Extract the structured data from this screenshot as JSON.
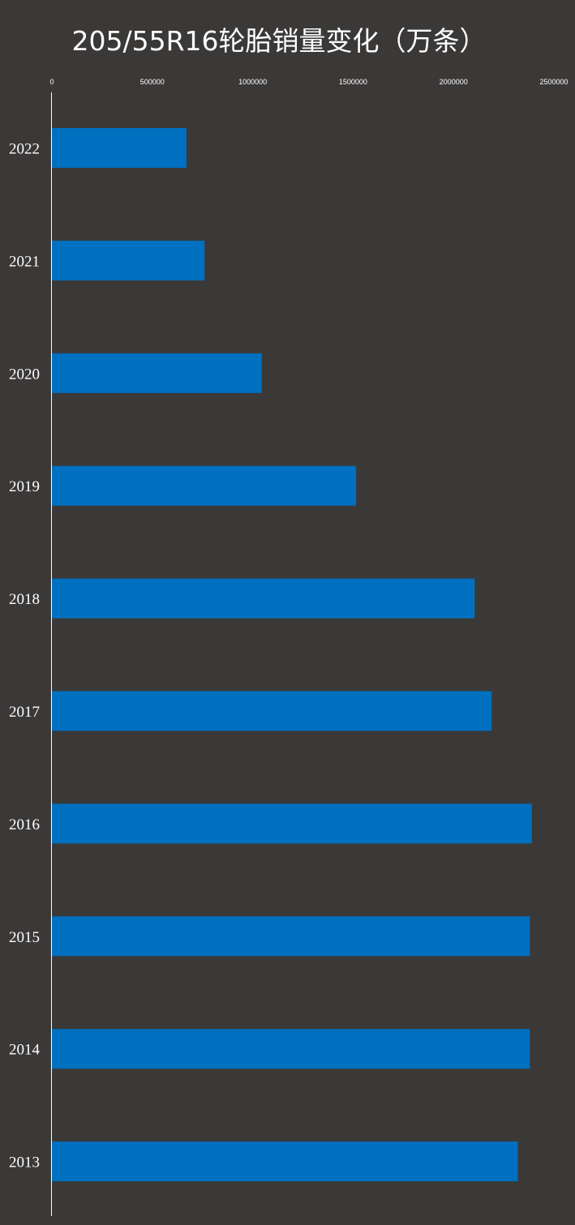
{
  "colors": {
    "background": "#3b3938",
    "bar": "#0070c0",
    "text": "#ffffff",
    "axis": "#ffffff"
  },
  "chart_data": {
    "type": "bar",
    "orientation": "horizontal",
    "title": "205/55R16轮胎销量变化（万条）",
    "categories": [
      "2022",
      "2021",
      "2020",
      "2019",
      "2018",
      "2017",
      "2016",
      "2015",
      "2014",
      "2013"
    ],
    "values": [
      670000,
      760000,
      1045000,
      1515000,
      2105000,
      2190000,
      2390000,
      2380000,
      2380000,
      2320000
    ],
    "xlim": [
      0,
      2500000
    ],
    "xticks": [
      "0",
      "500000",
      "1000000",
      "1500000",
      "2000000",
      "2500000"
    ],
    "x_axis_position": "top",
    "grid": false,
    "legend": "none"
  }
}
